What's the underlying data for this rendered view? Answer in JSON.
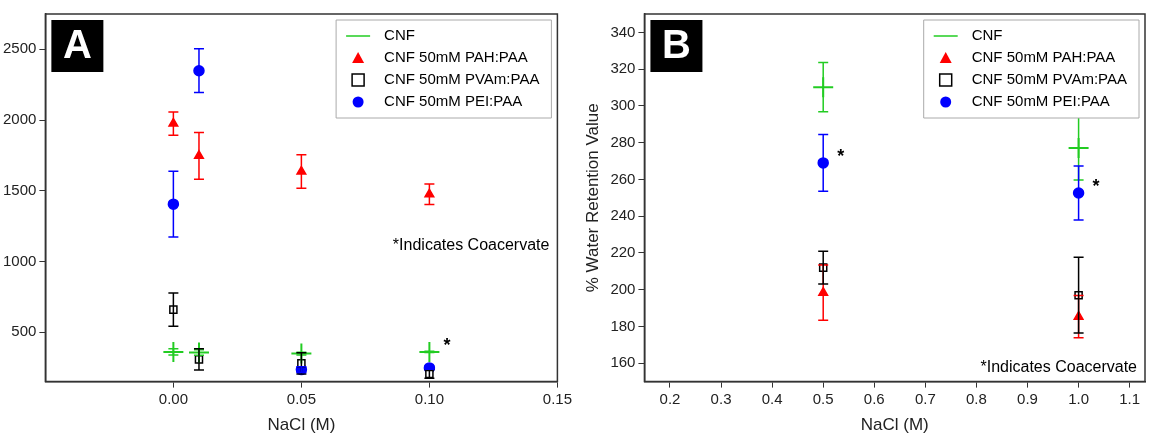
{
  "chart_data": [
    {
      "type": "scatter",
      "title": "A",
      "xlabel": "NaCl (M)",
      "x": [
        0,
        0.01,
        0.05,
        0.1
      ],
      "xlim": [
        -0.05,
        0.15
      ],
      "xticks": [
        {
          "value": 0,
          "label": "0.00"
        },
        {
          "value": 0.05,
          "label": "0.05"
        },
        {
          "value": 0.1,
          "label": "0.10"
        },
        {
          "value": 0.15,
          "label": "0.15"
        }
      ],
      "ylim": [
        150,
        2750
      ],
      "yticks": [
        500,
        1000,
        1500,
        2000,
        2500
      ],
      "grid": false,
      "legend": "top right",
      "series": [
        {
          "name": "CNF",
          "color": "#22cc22",
          "marker": "cross",
          "values": [
            360,
            356,
            348,
            360
          ],
          "errors": [
            22,
            20,
            10,
            5
          ]
        },
        {
          "name": "CNF 50mM PAH:PAA",
          "color": "#ff0000",
          "marker": "triangle",
          "values": [
            1975,
            1747,
            1636,
            1475
          ],
          "errors": [
            82,
            165,
            118,
            72
          ]
        },
        {
          "name": "CNF 50mM PVAm:PAA",
          "color": "#000000",
          "marker": "square",
          "values": [
            659,
            307,
            279,
            204
          ],
          "errors": [
            117,
            75,
            75,
            30
          ]
        },
        {
          "name": "CNF 50mM PEI:PAA",
          "color": "#0000ff",
          "marker": "circle",
          "values": [
            1405,
            2349,
            235,
            247
          ],
          "errors": [
            233,
            155,
            20,
            10
          ]
        }
      ],
      "annotations": [
        "*Indicates Coacervate",
        {
          "text": "*",
          "x": 0.1,
          "y": 360
        }
      ]
    },
    {
      "type": "scatter",
      "title": "B",
      "xlabel": "NaCl (M)",
      "ylabel": "% Water Retention Value",
      "x": [
        0.5,
        1
      ],
      "xlim": [
        0.15,
        1.13
      ],
      "xticks": [
        0.2,
        0.3,
        0.4,
        0.5,
        0.6,
        0.7,
        0.8,
        0.9,
        {
          "value": 1,
          "label": "1.0"
        },
        1.1
      ],
      "ylim": [
        150,
        350
      ],
      "yticks": [
        160,
        180,
        200,
        220,
        240,
        260,
        280,
        300,
        320,
        340
      ],
      "grid": false,
      "legend": "top right",
      "series": [
        {
          "name": "CNF",
          "color": "#22cc22",
          "marker": "cross",
          "values": [
            310.2,
            277.1
          ],
          "errors": [
            13.4,
            17.4
          ]
        },
        {
          "name": "CNF 50mM PAH:PAA",
          "color": "#ff0000",
          "marker": "triangle",
          "values": [
            198.4,
            185.3
          ],
          "errors": [
            15,
            11.5
          ]
        },
        {
          "name": "CNF 50mM PVAm:PAA",
          "color": "#000000",
          "marker": "square",
          "values": [
            212,
            197
          ],
          "errors": [
            8.9,
            20.6
          ]
        },
        {
          "name": "CNF 50mM PEI:PAA",
          "color": "#0000ff",
          "marker": "circle",
          "values": [
            269,
            252.6
          ],
          "errors": [
            15.4,
            14.7
          ]
        }
      ],
      "annotations": [
        "*Indicates Coacervate",
        {
          "text": "*",
          "x": 0.5,
          "y": 269
        },
        {
          "text": "*",
          "x": 1,
          "y": 252.6
        }
      ]
    }
  ]
}
